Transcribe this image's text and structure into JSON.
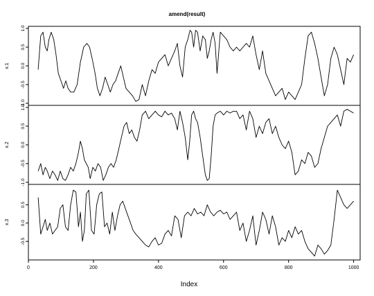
{
  "chart_data": {
    "type": "line",
    "title": "amend(result)",
    "xlabel": "Index",
    "xlim": [
      30,
      1000
    ],
    "x_ticks": [
      0,
      200,
      400,
      600,
      800,
      1000
    ],
    "grid": false,
    "legend": "none",
    "panels": [
      {
        "ylabel": "x.1",
        "ylim": [
          -1.0,
          1.0
        ],
        "y_ticks": [
          1.0,
          0.5,
          0.0,
          -0.5,
          -1.0
        ],
        "y_tick_labels": [
          "1.0",
          "0.5",
          "0.0",
          "-0.5",
          "-1.0"
        ],
        "x": [
          30,
          38,
          45,
          52,
          58,
          63,
          70,
          78,
          85,
          92,
          100,
          108,
          115,
          122,
          130,
          140,
          150,
          160,
          170,
          180,
          188,
          196,
          205,
          212,
          220,
          228,
          236,
          244,
          252,
          260,
          268,
          276,
          284,
          292,
          300,
          310,
          320,
          330,
          340,
          350,
          360,
          370,
          380,
          390,
          400,
          410,
          420,
          430,
          440,
          450,
          458,
          466,
          474,
          482,
          490,
          497,
          502,
          508,
          514,
          520,
          528,
          536,
          544,
          550,
          556,
          562,
          568,
          574,
          580,
          590,
          600,
          610,
          620,
          630,
          640,
          650,
          660,
          670,
          680,
          690,
          700,
          710,
          720,
          730,
          740,
          750,
          760,
          770,
          780,
          790,
          800,
          810,
          820,
          830,
          840,
          850,
          860,
          870,
          880,
          890,
          900,
          910,
          920,
          930,
          940,
          950,
          960,
          970,
          980,
          990,
          1000
        ],
        "values": [
          -0.1,
          0.8,
          0.9,
          0.5,
          0.4,
          0.7,
          0.9,
          0.7,
          0.3,
          -0.2,
          -0.4,
          -0.6,
          -0.4,
          -0.6,
          -0.7,
          -0.7,
          -0.5,
          0.1,
          0.5,
          0.6,
          0.5,
          0.2,
          -0.2,
          -0.6,
          -0.8,
          -0.6,
          -0.3,
          -0.5,
          -0.7,
          -0.5,
          -0.4,
          -0.2,
          0.0,
          -0.3,
          -0.6,
          -0.7,
          -0.8,
          -0.95,
          -0.9,
          -0.5,
          -0.8,
          -0.4,
          -0.1,
          -0.2,
          0.1,
          0.2,
          0.3,
          0.0,
          0.2,
          0.4,
          0.6,
          0.0,
          -0.3,
          0.5,
          0.7,
          0.95,
          0.9,
          0.5,
          0.95,
          0.9,
          0.4,
          0.8,
          0.7,
          0.2,
          0.4,
          0.7,
          0.9,
          0.6,
          -0.2,
          0.9,
          0.8,
          0.7,
          0.5,
          0.4,
          0.5,
          0.4,
          0.5,
          0.6,
          0.5,
          0.8,
          0.3,
          -0.1,
          0.4,
          -0.2,
          -0.4,
          -0.6,
          -0.8,
          -0.7,
          -0.6,
          -0.9,
          -0.7,
          -0.8,
          -0.9,
          -0.7,
          -0.5,
          0.2,
          0.8,
          0.9,
          0.6,
          0.2,
          -0.3,
          -0.8,
          -0.5,
          0.2,
          0.5,
          0.3,
          -0.1,
          -0.5,
          0.2,
          0.1,
          0.3
        ]
      },
      {
        "ylabel": "x.2",
        "ylim": [
          -1.0,
          1.0
        ],
        "y_ticks": [
          1.0,
          0.5,
          0.0,
          -0.5,
          -1.0
        ],
        "y_tick_labels": [
          "1.0",
          "0.5",
          "0.0",
          "-0.5",
          "-1.0"
        ],
        "x": [
          30,
          38,
          45,
          52,
          58,
          66,
          74,
          82,
          90,
          98,
          106,
          114,
          122,
          130,
          138,
          146,
          154,
          160,
          166,
          172,
          178,
          184,
          190,
          198,
          206,
          214,
          222,
          230,
          238,
          246,
          254,
          262,
          270,
          278,
          286,
          294,
          302,
          310,
          318,
          326,
          334,
          342,
          350,
          360,
          370,
          380,
          390,
          400,
          410,
          420,
          430,
          440,
          450,
          458,
          466,
          474,
          482,
          490,
          496,
          502,
          508,
          514,
          520,
          528,
          536,
          544,
          550,
          556,
          562,
          568,
          574,
          580,
          590,
          600,
          610,
          620,
          630,
          640,
          650,
          660,
          670,
          680,
          690,
          700,
          710,
          720,
          730,
          740,
          750,
          760,
          770,
          780,
          790,
          800,
          810,
          820,
          830,
          840,
          850,
          860,
          870,
          880,
          890,
          900,
          910,
          920,
          930,
          940,
          950,
          960,
          970,
          980,
          990,
          1000
        ],
        "values": [
          -0.7,
          -0.5,
          -0.8,
          -0.6,
          -0.7,
          -0.9,
          -0.7,
          -0.8,
          -0.95,
          -0.7,
          -0.9,
          -0.95,
          -0.8,
          -0.6,
          -0.7,
          -0.5,
          -0.2,
          0.1,
          -0.1,
          -0.4,
          -0.5,
          -0.6,
          -0.9,
          -0.6,
          -0.7,
          -0.5,
          -0.6,
          -0.95,
          -0.8,
          -0.6,
          -0.5,
          -0.6,
          -0.4,
          -0.1,
          0.2,
          0.5,
          0.6,
          0.3,
          0.4,
          0.2,
          0.1,
          0.4,
          0.8,
          0.9,
          0.7,
          0.8,
          0.9,
          0.8,
          0.75,
          0.9,
          0.8,
          0.85,
          0.7,
          0.4,
          0.9,
          0.6,
          0.2,
          -0.4,
          0.1,
          0.8,
          0.9,
          0.7,
          0.6,
          0.2,
          -0.3,
          -0.8,
          -0.95,
          -0.9,
          -0.3,
          0.5,
          0.8,
          0.85,
          0.9,
          0.8,
          0.9,
          0.85,
          0.9,
          0.9,
          0.7,
          0.8,
          0.4,
          0.9,
          0.7,
          0.2,
          0.5,
          0.3,
          0.6,
          0.7,
          0.3,
          0.5,
          0.2,
          0.0,
          -0.1,
          0.1,
          -0.2,
          -0.8,
          -0.7,
          -0.4,
          -0.5,
          -0.2,
          -0.3,
          -0.6,
          -0.5,
          -0.1,
          0.2,
          0.5,
          0.6,
          0.7,
          0.8,
          0.5,
          0.9,
          0.95,
          0.9,
          0.85
        ]
      },
      {
        "ylabel": "x.3",
        "ylim": [
          -0.95,
          1.0
        ],
        "y_ticks": [
          0.5,
          0.0,
          -0.5
        ],
        "y_tick_labels": [
          "0.5",
          "0.0",
          "-0.5"
        ],
        "x": [
          30,
          38,
          45,
          52,
          58,
          66,
          74,
          82,
          90,
          98,
          106,
          114,
          122,
          130,
          138,
          146,
          154,
          160,
          166,
          172,
          178,
          186,
          194,
          202,
          210,
          218,
          226,
          234,
          242,
          250,
          258,
          266,
          274,
          282,
          290,
          298,
          306,
          314,
          322,
          330,
          340,
          350,
          360,
          370,
          380,
          390,
          400,
          410,
          420,
          430,
          440,
          450,
          460,
          470,
          480,
          490,
          500,
          510,
          520,
          530,
          540,
          550,
          560,
          570,
          580,
          590,
          600,
          610,
          620,
          630,
          640,
          650,
          660,
          670,
          680,
          690,
          700,
          710,
          720,
          730,
          740,
          750,
          760,
          770,
          780,
          790,
          800,
          810,
          820,
          830,
          840,
          850,
          860,
          870,
          880,
          890,
          900,
          910,
          920,
          930,
          940,
          950,
          960,
          970,
          980,
          990,
          1000
        ],
        "values": [
          0.7,
          -0.3,
          -0.1,
          0.1,
          -0.2,
          0.0,
          -0.3,
          -0.2,
          -0.1,
          0.4,
          0.5,
          -0.1,
          -0.2,
          0.5,
          0.9,
          0.85,
          -0.1,
          0.3,
          -0.5,
          -0.2,
          0.8,
          0.9,
          -0.2,
          -0.3,
          0.5,
          0.8,
          0.85,
          -0.1,
          0.0,
          -0.3,
          0.3,
          -0.2,
          0.2,
          0.5,
          0.6,
          0.4,
          0.2,
          0.0,
          -0.2,
          -0.3,
          -0.4,
          -0.5,
          -0.6,
          -0.65,
          -0.5,
          -0.4,
          -0.6,
          -0.55,
          -0.3,
          -0.2,
          -0.35,
          0.2,
          0.1,
          -0.4,
          0.2,
          0.3,
          0.2,
          0.4,
          0.25,
          0.3,
          0.2,
          0.5,
          0.3,
          0.2,
          0.3,
          0.35,
          0.25,
          0.3,
          0.1,
          0.2,
          0.3,
          -0.2,
          0.0,
          -0.5,
          -0.2,
          0.2,
          -0.6,
          -0.2,
          0.3,
          0.1,
          -0.3,
          0.2,
          -0.1,
          -0.6,
          -0.4,
          -0.5,
          -0.2,
          -0.4,
          -0.1,
          -0.3,
          -0.2,
          -0.5,
          -0.7,
          -0.8,
          -0.9,
          -0.6,
          -0.7,
          -0.85,
          -0.75,
          -0.6,
          0.1,
          0.9,
          0.7,
          0.5,
          0.4,
          0.5,
          0.6
        ]
      }
    ]
  }
}
